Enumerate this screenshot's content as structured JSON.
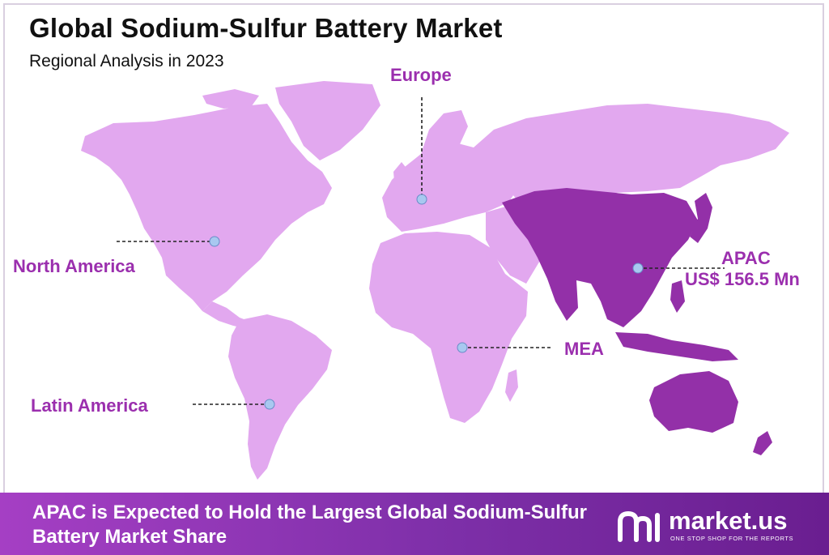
{
  "header": {
    "title": "Global Sodium-Sulfur Battery Market",
    "subtitle": "Regional Analysis in 2023"
  },
  "colors": {
    "land": "#e2a8ef",
    "highlight": "#9330a8",
    "label": "#9b2fae",
    "marker": "#a8c8f0",
    "footer_start": "#a53fc4",
    "footer_end": "#6a1e90"
  },
  "regions": {
    "europe": {
      "label": "Europe"
    },
    "north_america": {
      "label": "North America"
    },
    "apac": {
      "label": "APAC",
      "value": "US$ 156.5 Mn",
      "highlighted": true
    },
    "mea": {
      "label": "MEA"
    },
    "latin_america": {
      "label": "Latin America"
    }
  },
  "footer": {
    "text": "APAC is Expected to Hold the Largest Global Sodium-Sulfur Battery Market Share"
  },
  "logo": {
    "name": "market.us",
    "tagline": "ONE STOP SHOP FOR THE REPORTS"
  }
}
